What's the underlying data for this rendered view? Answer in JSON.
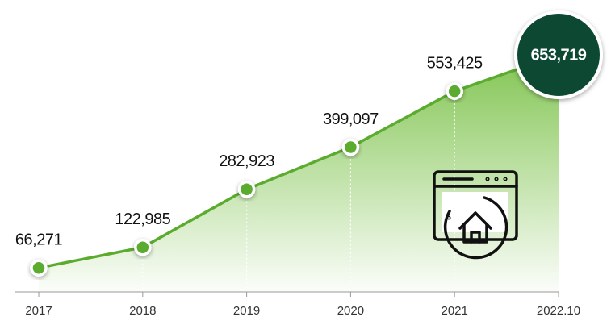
{
  "chart_data": {
    "type": "area",
    "categories": [
      "2017",
      "2018",
      "2019",
      "2020",
      "2021",
      "2022.10"
    ],
    "values": [
      66271,
      122985,
      282923,
      399097,
      553425,
      653719
    ],
    "value_labels": [
      "66,271",
      "122,985",
      "282,923",
      "399,097",
      "553,425",
      "653,719"
    ],
    "color": "#5aab2e",
    "area_color": "#7cc24a",
    "highlight_color": "#0f4a30"
  }
}
